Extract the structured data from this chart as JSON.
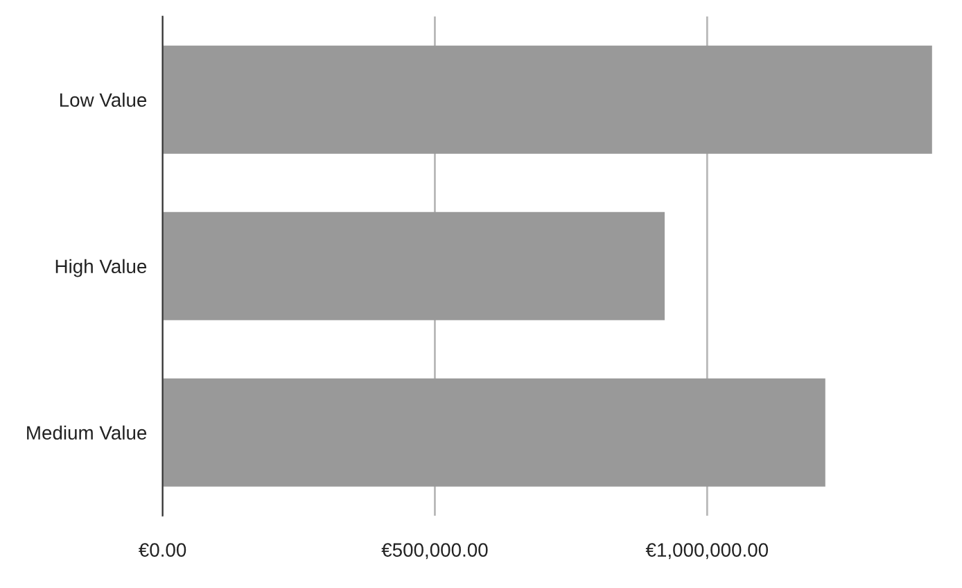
{
  "chart_data": {
    "type": "bar",
    "orientation": "horizontal",
    "categories": [
      "Low Value",
      "High Value",
      "Medium Value"
    ],
    "values": [
      1413000,
      922000,
      1217000
    ],
    "color": "#999999",
    "xlim": [
      0,
      1415000
    ],
    "xticks": [
      {
        "value": 0,
        "label": "€0.00"
      },
      {
        "value": 500000,
        "label": "€500,000.00"
      },
      {
        "value": 1000000,
        "label": "€1,000,000.00"
      }
    ],
    "grid": "x",
    "legend": false
  }
}
